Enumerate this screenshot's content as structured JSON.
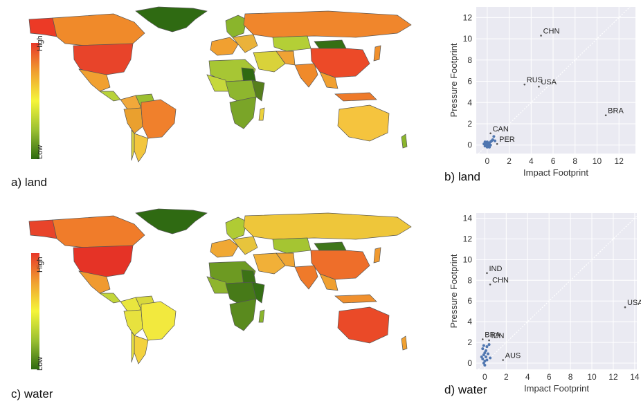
{
  "colors": {
    "high": "#e8382a",
    "mid": "#f5f53a",
    "low": "#2e6b10",
    "ocean": "#ffffff",
    "border": "#555555",
    "point": "#4f76b0",
    "plot_bg": "#eaeaf2"
  },
  "panels": {
    "a": {
      "caption": "a) land",
      "legend_high": "High",
      "legend_low": "Low"
    },
    "b": {
      "caption": "b) land"
    },
    "c": {
      "caption": "c) water",
      "legend_high": "High",
      "legend_low": "Low"
    },
    "d": {
      "caption": "d) water"
    }
  },
  "chart_data": [
    {
      "type": "scatter",
      "panel": "b",
      "xlabel": "Impact Footprint",
      "ylabel": "Pressure Footprint",
      "xlim": [
        -1,
        13.5
      ],
      "ylim": [
        -0.8,
        13
      ],
      "xticks": [
        0,
        2,
        4,
        6,
        8,
        10,
        12
      ],
      "yticks": [
        0,
        2,
        4,
        6,
        8,
        10,
        12
      ],
      "diagonal": true,
      "grid": true,
      "labeled_points": [
        {
          "label": "CHN",
          "x": 4.9,
          "y": 10.3
        },
        {
          "label": "RUS",
          "x": 3.4,
          "y": 5.7
        },
        {
          "label": "USA",
          "x": 4.7,
          "y": 5.5
        },
        {
          "label": "BRA",
          "x": 10.8,
          "y": 2.8
        },
        {
          "label": "CAN",
          "x": 0.3,
          "y": 1.1
        },
        {
          "label": "PER",
          "x": 0.9,
          "y": 0.1
        }
      ],
      "points": [
        {
          "x": -0.2,
          "y": -0.1
        },
        {
          "x": -0.1,
          "y": 0.0
        },
        {
          "x": 0.0,
          "y": -0.2
        },
        {
          "x": 0.1,
          "y": 0.1
        },
        {
          "x": 0.2,
          "y": 0.2
        },
        {
          "x": 0.0,
          "y": 0.3
        },
        {
          "x": -0.3,
          "y": 0.1
        },
        {
          "x": 0.3,
          "y": 0.0
        },
        {
          "x": 0.4,
          "y": 0.4
        },
        {
          "x": 0.1,
          "y": -0.1
        },
        {
          "x": -0.1,
          "y": 0.2
        },
        {
          "x": 0.2,
          "y": -0.2
        },
        {
          "x": 0.5,
          "y": 0.5
        },
        {
          "x": 0.6,
          "y": 0.8
        },
        {
          "x": 0.0,
          "y": 0.1
        },
        {
          "x": 0.3,
          "y": 0.3
        },
        {
          "x": -0.2,
          "y": 0.3
        },
        {
          "x": 0.7,
          "y": 0.4
        }
      ]
    },
    {
      "type": "scatter",
      "panel": "d",
      "xlabel": "Impact Footprint",
      "ylabel": "Pressure Footprint",
      "xlim": [
        -0.8,
        14.2
      ],
      "ylim": [
        -0.6,
        14.5
      ],
      "xticks": [
        0,
        2,
        4,
        6,
        8,
        10,
        12,
        14
      ],
      "yticks": [
        0,
        2,
        4,
        6,
        8,
        10,
        12,
        14
      ],
      "diagonal": true,
      "grid": true,
      "labeled_points": [
        {
          "label": "IND",
          "x": 0.2,
          "y": 8.7
        },
        {
          "label": "CHN",
          "x": 0.5,
          "y": 7.6
        },
        {
          "label": "USA",
          "x": 13.1,
          "y": 5.4
        },
        {
          "label": "BRA",
          "x": -0.2,
          "y": 2.3
        },
        {
          "label": "IDN",
          "x": 0.4,
          "y": 2.2
        },
        {
          "label": "AUS",
          "x": 1.7,
          "y": 0.3
        }
      ],
      "points": [
        {
          "x": -0.1,
          "y": 0.0
        },
        {
          "x": 0.0,
          "y": 0.2
        },
        {
          "x": -0.2,
          "y": 0.4
        },
        {
          "x": 0.1,
          "y": 0.6
        },
        {
          "x": -0.1,
          "y": 0.8
        },
        {
          "x": 0.0,
          "y": 1.0
        },
        {
          "x": 0.2,
          "y": 0.3
        },
        {
          "x": -0.3,
          "y": 0.6
        },
        {
          "x": 0.1,
          "y": 1.2
        },
        {
          "x": 0.3,
          "y": 0.9
        },
        {
          "x": 0.0,
          "y": -0.2
        },
        {
          "x": -0.2,
          "y": 1.4
        },
        {
          "x": 0.2,
          "y": 1.6
        },
        {
          "x": 0.5,
          "y": 0.5
        },
        {
          "x": 0.4,
          "y": 1.8
        },
        {
          "x": -0.1,
          "y": 1.7
        }
      ]
    }
  ]
}
